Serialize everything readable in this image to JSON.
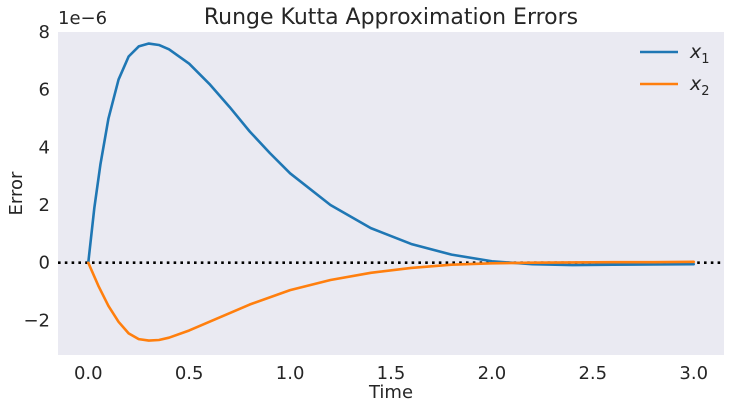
{
  "chart_data": {
    "type": "line",
    "title": "Runge Kutta Approximation Errors",
    "xlabel": "Time",
    "ylabel": "Error",
    "y_offset_label": "1e−6",
    "xlim": [
      -0.15,
      3.15
    ],
    "ylim": [
      -3.2,
      8.0
    ],
    "y_scale_factor": 1e-06,
    "grid": false,
    "background": "#eaeaf2",
    "legend_position": "upper right",
    "x_ticks": [
      0.0,
      0.5,
      1.0,
      1.5,
      2.0,
      2.5,
      3.0
    ],
    "x_tick_labels": [
      "0.0",
      "0.5",
      "1.0",
      "1.5",
      "2.0",
      "2.5",
      "3.0"
    ],
    "y_ticks": [
      -2,
      0,
      2,
      4,
      6,
      8
    ],
    "y_tick_labels": [
      "−2",
      "0",
      "2",
      "4",
      "6",
      "8"
    ],
    "reference_line": {
      "y": 0,
      "style": "dotted",
      "color": "#000000"
    },
    "series": [
      {
        "name": "x",
        "name_subscript": "1",
        "color": "#1f77b4",
        "x": [
          0.0,
          0.03,
          0.06,
          0.1,
          0.15,
          0.2,
          0.25,
          0.3,
          0.35,
          0.4,
          0.5,
          0.6,
          0.7,
          0.8,
          0.9,
          1.0,
          1.2,
          1.4,
          1.6,
          1.8,
          2.0,
          2.2,
          2.4,
          2.6,
          2.8,
          3.0
        ],
        "y": [
          0.0,
          1.9,
          3.4,
          5.0,
          6.35,
          7.15,
          7.5,
          7.6,
          7.55,
          7.4,
          6.9,
          6.2,
          5.4,
          4.55,
          3.8,
          3.1,
          2.0,
          1.2,
          0.65,
          0.28,
          0.05,
          -0.05,
          -0.08,
          -0.07,
          -0.06,
          -0.05
        ]
      },
      {
        "name": "x",
        "name_subscript": "2",
        "color": "#ff7f0e",
        "x": [
          0.0,
          0.05,
          0.1,
          0.15,
          0.2,
          0.25,
          0.3,
          0.35,
          0.4,
          0.5,
          0.6,
          0.7,
          0.8,
          1.0,
          1.2,
          1.4,
          1.6,
          1.8,
          2.0,
          2.2,
          2.4,
          2.6,
          2.8,
          3.0
        ],
        "y": [
          0.0,
          -0.8,
          -1.5,
          -2.05,
          -2.45,
          -2.65,
          -2.7,
          -2.68,
          -2.6,
          -2.35,
          -2.05,
          -1.75,
          -1.45,
          -0.95,
          -0.6,
          -0.35,
          -0.18,
          -0.07,
          -0.02,
          0.0,
          0.01,
          0.02,
          0.02,
          0.03
        ]
      }
    ]
  }
}
